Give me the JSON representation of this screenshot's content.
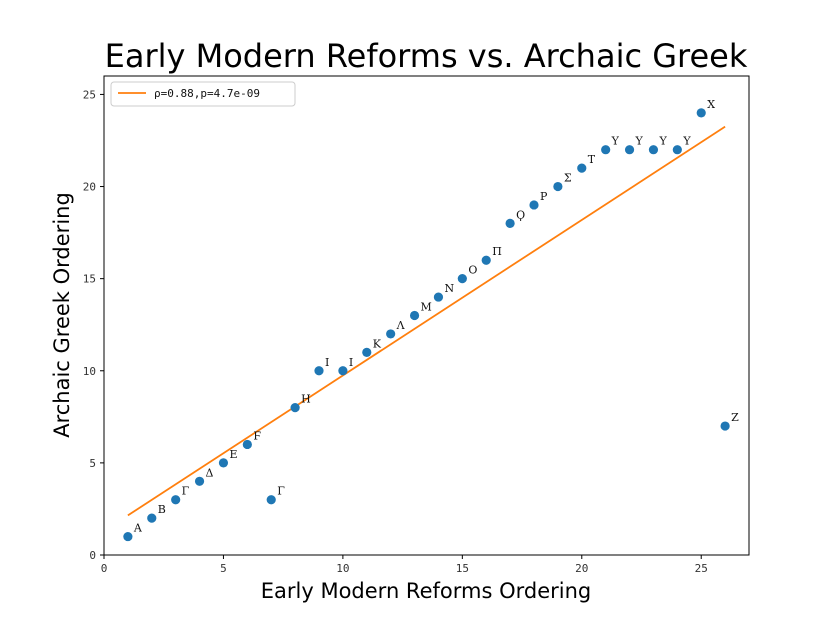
{
  "chart_data": {
    "type": "scatter",
    "title": "Early Modern Reforms vs. Archaic Greek",
    "xlabel": "Early Modern Reforms Ordering",
    "ylabel": "Archaic Greek Ordering",
    "xlim": [
      0,
      27
    ],
    "ylim": [
      0,
      26
    ],
    "xticks": [
      "0",
      "5",
      "10",
      "15",
      "20",
      "25"
    ],
    "yticks": [
      "0",
      "5",
      "10",
      "15",
      "20",
      "25"
    ],
    "grid": false,
    "legend_position": "top-left",
    "points_color": "#1f77b4",
    "fit_color": "#ff7f0e",
    "points": [
      {
        "x": 1,
        "y": 1,
        "label": "Α"
      },
      {
        "x": 2,
        "y": 2,
        "label": "Β"
      },
      {
        "x": 3,
        "y": 3,
        "label": "Γ"
      },
      {
        "x": 4,
        "y": 4,
        "label": "Δ"
      },
      {
        "x": 5,
        "y": 5,
        "label": "Ε"
      },
      {
        "x": 6,
        "y": 6,
        "label": "Ϝ"
      },
      {
        "x": 7,
        "y": 3,
        "label": "Γ"
      },
      {
        "x": 8,
        "y": 8,
        "label": "Η"
      },
      {
        "x": 9,
        "y": 10,
        "label": "Ι"
      },
      {
        "x": 10,
        "y": 10,
        "label": "Ι"
      },
      {
        "x": 11,
        "y": 11,
        "label": "Κ"
      },
      {
        "x": 12,
        "y": 12,
        "label": "Λ"
      },
      {
        "x": 13,
        "y": 13,
        "label": "Μ"
      },
      {
        "x": 14,
        "y": 14,
        "label": "Ν"
      },
      {
        "x": 15,
        "y": 15,
        "label": "Ο"
      },
      {
        "x": 16,
        "y": 16,
        "label": "Π"
      },
      {
        "x": 17,
        "y": 18,
        "label": "Ϙ"
      },
      {
        "x": 18,
        "y": 19,
        "label": "Ρ"
      },
      {
        "x": 19,
        "y": 20,
        "label": "Σ"
      },
      {
        "x": 20,
        "y": 21,
        "label": "Τ"
      },
      {
        "x": 21,
        "y": 22,
        "label": "Υ"
      },
      {
        "x": 22,
        "y": 22,
        "label": "Υ"
      },
      {
        "x": 23,
        "y": 22,
        "label": "Υ"
      },
      {
        "x": 24,
        "y": 22,
        "label": "Υ"
      },
      {
        "x": 25,
        "y": 24,
        "label": "Χ"
      },
      {
        "x": 26,
        "y": 7,
        "label": "Ζ"
      }
    ],
    "fit_line": {
      "x": [
        1,
        26
      ],
      "y": [
        2.15,
        23.25
      ]
    },
    "legend": {
      "text": "ρ=0.88,p=4.7e-09"
    }
  }
}
